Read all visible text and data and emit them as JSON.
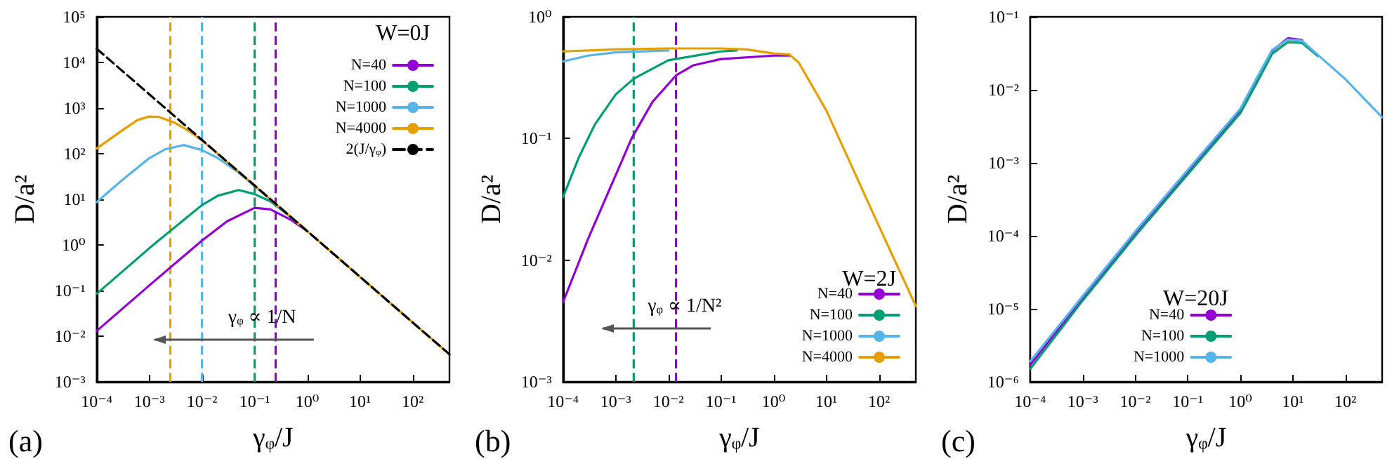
{
  "chart_data": [
    {
      "type": "line",
      "xlabel": "γᵩ/J",
      "ylabel": "D/a²",
      "legend_title": "W=0J",
      "legend": "top right",
      "log": "xy",
      "marker": "none",
      "annotations": [
        "(a)",
        "γᵩ ∝ 1/N"
      ],
      "xlim": [
        0.0001,
        500
      ],
      "xticks": [
        {
          "value": 0.0001,
          "label": "10⁻⁴"
        },
        {
          "value": 0.001,
          "label": "10⁻³"
        },
        {
          "value": 0.01,
          "label": "10⁻²"
        },
        {
          "value": 0.1,
          "label": "10⁻¹"
        },
        {
          "value": 1,
          "label": "10⁰"
        },
        {
          "value": 10,
          "label": "10¹"
        },
        {
          "value": 100,
          "label": "10²"
        }
      ],
      "ylim": [
        0.001,
        100000
      ],
      "yticks": [
        {
          "value": 0.001,
          "label": "10⁻³"
        },
        {
          "value": 0.01,
          "label": "10⁻²"
        },
        {
          "value": 0.1,
          "label": "10⁻¹"
        },
        {
          "value": 1,
          "label": "10⁰"
        },
        {
          "value": 10,
          "label": "10¹"
        },
        {
          "value": 100,
          "label": "10²"
        },
        {
          "value": 1000,
          "label": "10³"
        },
        {
          "value": 10000,
          "label": "10⁴"
        },
        {
          "value": 100000,
          "label": "10⁵"
        }
      ],
      "ref_lines": [
        {
          "axis": "x",
          "value": 0.0025,
          "color": "#e69f00",
          "line_style": "dashed"
        },
        {
          "axis": "x",
          "value": 0.01,
          "color": "#56b4e9",
          "line_style": "dashed"
        },
        {
          "axis": "x",
          "value": 0.1,
          "color": "#009e73",
          "line_style": "dashed"
        },
        {
          "axis": "x",
          "value": 0.25,
          "color": "#9400d3",
          "line_style": "dashed"
        }
      ],
      "series": [
        {
          "name": "N=40",
          "color": "#9400d3",
          "x": [
            0.0001,
            0.001,
            0.01,
            0.03,
            0.1,
            0.2,
            0.5,
            1
          ],
          "values": [
            0.013,
            0.13,
            1.25,
            3.3,
            6.5,
            6,
            3.5,
            2
          ]
        },
        {
          "name": "N=100",
          "color": "#009e73",
          "x": [
            0.0001,
            0.001,
            0.01,
            0.02,
            0.05,
            0.1,
            0.2,
            0.5,
            1
          ],
          "values": [
            0.085,
            0.85,
            7.5,
            12,
            16,
            13,
            9,
            4,
            2
          ]
        },
        {
          "name": "N=1000",
          "color": "#56b4e9",
          "x": [
            0.0001,
            0.0003,
            0.001,
            0.002,
            0.0045,
            0.01,
            0.02,
            0.05,
            0.1,
            1
          ],
          "values": [
            8.7,
            26,
            80,
            125,
            155,
            120,
            80,
            38,
            19.5,
            2
          ]
        },
        {
          "name": "N=4000",
          "color": "#e69f00",
          "x": [
            0.0001,
            0.0003,
            0.0006,
            0.001,
            0.0015,
            0.003,
            0.006,
            0.01,
            0.1,
            1,
            10,
            100,
            500
          ],
          "values": [
            130,
            320,
            550,
            650,
            640,
            480,
            300,
            195,
            20,
            2,
            0.2,
            0.02,
            0.004
          ]
        },
        {
          "name": "2(J/γᵩ)",
          "color": "#000000",
          "line_style": "dashed",
          "x": [
            0.0001,
            0.001,
            0.01,
            0.1,
            1,
            10,
            100,
            500
          ],
          "values": [
            20000,
            2000,
            200,
            20,
            2,
            0.2,
            0.02,
            0.004
          ]
        }
      ]
    },
    {
      "type": "line",
      "xlabel": "γᵩ/J",
      "ylabel": "D/a²",
      "legend_title": "W=2J",
      "legend": "bottom right",
      "log": "xy",
      "marker": "none",
      "annotations": [
        "(b)",
        "γᵩ ∝ 1/N²"
      ],
      "xlim": [
        0.0001,
        500
      ],
      "xticks": [
        {
          "value": 0.0001,
          "label": "10⁻⁴"
        },
        {
          "value": 0.001,
          "label": "10⁻³"
        },
        {
          "value": 0.01,
          "label": "10⁻²"
        },
        {
          "value": 0.1,
          "label": "10⁻¹"
        },
        {
          "value": 1,
          "label": "10⁰"
        },
        {
          "value": 10,
          "label": "10¹"
        },
        {
          "value": 100,
          "label": "10²"
        }
      ],
      "ylim": [
        0.001,
        1
      ],
      "yticks": [
        {
          "value": 0.001,
          "label": "10⁻³"
        },
        {
          "value": 0.01,
          "label": "10⁻²"
        },
        {
          "value": 0.1,
          "label": "10⁻¹"
        },
        {
          "value": 1,
          "label": "10⁰"
        }
      ],
      "ref_lines": [
        {
          "axis": "x",
          "value": 0.0022,
          "color": "#009e73",
          "line_style": "dashed"
        },
        {
          "axis": "x",
          "value": 0.014,
          "color": "#9400d3",
          "line_style": "dashed"
        }
      ],
      "series": [
        {
          "name": "N=40",
          "color": "#9400d3",
          "x": [
            0.0001,
            0.0003,
            0.001,
            0.002,
            0.005,
            0.014,
            0.03,
            0.1,
            1,
            2
          ],
          "values": [
            0.0045,
            0.015,
            0.05,
            0.1,
            0.2,
            0.33,
            0.4,
            0.45,
            0.48,
            0.48
          ]
        },
        {
          "name": "N=100",
          "color": "#009e73",
          "x": [
            0.0001,
            0.0002,
            0.0004,
            0.001,
            0.0022,
            0.01,
            0.1,
            0.2
          ],
          "values": [
            0.033,
            0.07,
            0.13,
            0.23,
            0.31,
            0.44,
            0.52,
            0.53
          ]
        },
        {
          "name": "N=1000",
          "color": "#56b4e9",
          "x": [
            0.0001,
            0.0003,
            0.001,
            0.01
          ],
          "values": [
            0.43,
            0.48,
            0.51,
            0.53
          ]
        },
        {
          "name": "N=4000",
          "color": "#e69f00",
          "x": [
            0.0001,
            0.001,
            0.01,
            0.1,
            0.3,
            1,
            2,
            3,
            10,
            100,
            500
          ],
          "values": [
            0.52,
            0.54,
            0.55,
            0.55,
            0.54,
            0.5,
            0.49,
            0.42,
            0.17,
            0.019,
            0.0042
          ]
        }
      ]
    },
    {
      "type": "line",
      "xlabel": "γᵩ/J",
      "ylabel": "D/a²",
      "legend_title": "W=20J",
      "legend": "bottom",
      "log": "xy",
      "marker": "none",
      "annotations": [
        "(c)"
      ],
      "xlim": [
        0.0001,
        500
      ],
      "xticks": [
        {
          "value": 0.0001,
          "label": "10⁻⁴"
        },
        {
          "value": 0.001,
          "label": "10⁻³"
        },
        {
          "value": 0.01,
          "label": "10⁻²"
        },
        {
          "value": 0.1,
          "label": "10⁻¹"
        },
        {
          "value": 1,
          "label": "10⁰"
        },
        {
          "value": 10,
          "label": "10¹"
        },
        {
          "value": 100,
          "label": "10²"
        }
      ],
      "ylim": [
        1e-06,
        0.1
      ],
      "yticks": [
        {
          "value": 1e-06,
          "label": "10⁻⁶"
        },
        {
          "value": 1e-05,
          "label": "10⁻⁵"
        },
        {
          "value": 0.0001,
          "label": "10⁻⁴"
        },
        {
          "value": 0.001,
          "label": "10⁻³"
        },
        {
          "value": 0.01,
          "label": "10⁻²"
        },
        {
          "value": 0.1,
          "label": "10⁻¹"
        }
      ],
      "series": [
        {
          "name": "N=40",
          "color": "#9400d3",
          "x": [
            0.0001,
            0.001,
            0.01,
            0.1,
            1,
            2,
            4,
            8,
            15
          ],
          "values": [
            1.7e-06,
            1.4e-05,
            0.000108,
            0.00076,
            0.0052,
            0.013,
            0.034,
            0.051,
            0.048
          ]
        },
        {
          "name": "N=100",
          "color": "#009e73",
          "x": [
            0.0001,
            0.001,
            0.01,
            0.1,
            1,
            2,
            4,
            8,
            15,
            30
          ],
          "values": [
            1.5e-06,
            1.3e-05,
            0.0001,
            0.0007,
            0.0048,
            0.012,
            0.031,
            0.045,
            0.044,
            0.029
          ]
        },
        {
          "name": "N=1000",
          "color": "#56b4e9",
          "x": [
            0.0001,
            0.001,
            0.01,
            0.1,
            1,
            2,
            4,
            8,
            15,
            30,
            100,
            500
          ],
          "values": [
            1.9e-06,
            1.5e-05,
            0.000115,
            0.0008,
            0.0055,
            0.014,
            0.035,
            0.049,
            0.047,
            0.03,
            0.014,
            0.0042
          ]
        }
      ]
    }
  ]
}
